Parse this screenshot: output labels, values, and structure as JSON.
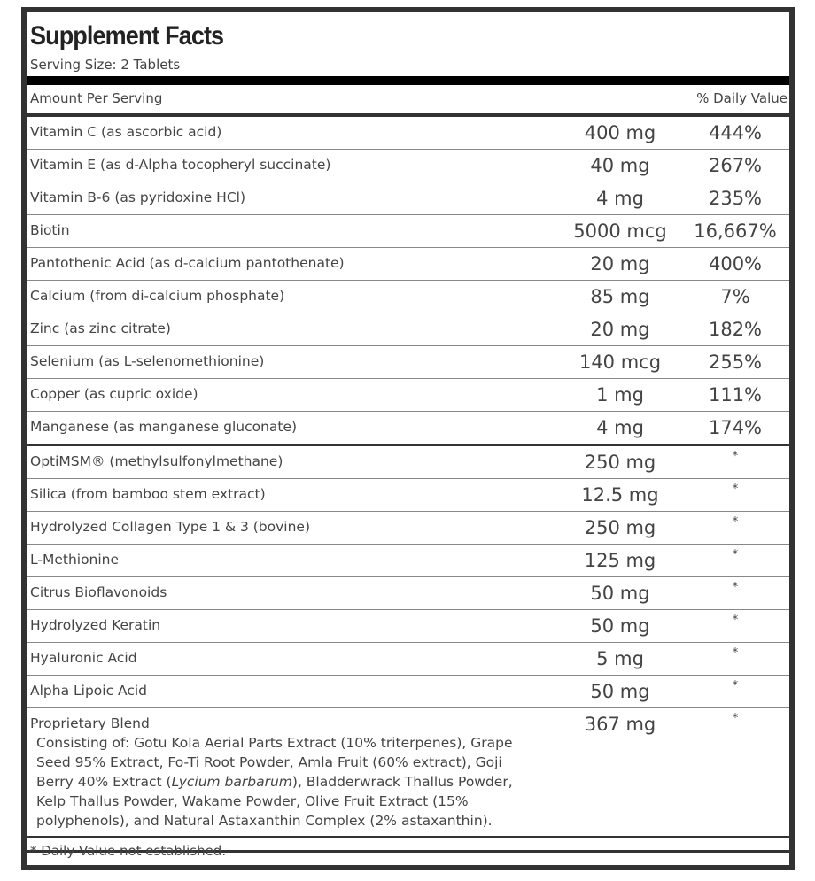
{
  "title": "Supplement Facts",
  "serving_size": "Serving Size: 2 Tablets",
  "header": {
    "amount": "Amount Per Serving",
    "dv": "% Daily Value"
  },
  "vitamins": [
    {
      "name": "Vitamin C (as ascorbic acid)",
      "amount": "400 mg",
      "dv": "444%"
    },
    {
      "name": "Vitamin E (as d-Alpha tocopheryl succinate)",
      "amount": "40 mg",
      "dv": "267%"
    },
    {
      "name": "Vitamin B-6 (as pyridoxine HCl)",
      "amount": "4 mg",
      "dv": "235%"
    },
    {
      "name": "Biotin",
      "amount": "5000 mcg",
      "dv": "16,667%"
    },
    {
      "name": "Pantothenic Acid (as d-calcium pantothenate)",
      "amount": "20 mg",
      "dv": "400%"
    },
    {
      "name": "Calcium (from di-calcium phosphate)",
      "amount": "85 mg",
      "dv": "7%"
    },
    {
      "name": "Zinc (as zinc citrate)",
      "amount": "20 mg",
      "dv": "182%"
    },
    {
      "name": "Selenium (as L-selenomethionine)",
      "amount": "140 mcg",
      "dv": "255%"
    },
    {
      "name": "Copper (as cupric oxide)",
      "amount": "1 mg",
      "dv": "111%"
    },
    {
      "name": "Manganese (as manganese gluconate)",
      "amount": "4 mg",
      "dv": "174%"
    }
  ],
  "others": [
    {
      "name": "OptiMSM® (methylsulfonylmethane)",
      "amount": "250 mg",
      "dv": "*"
    },
    {
      "name": "Silica (from bamboo stem extract)",
      "amount": "12.5 mg",
      "dv": "*"
    },
    {
      "name": "Hydrolyzed Collagen Type 1 & 3 (bovine)",
      "amount": "250 mg",
      "dv": "*"
    },
    {
      "name": "L-Methionine",
      "amount": "125 mg",
      "dv": "*"
    },
    {
      "name": "Citrus Bioflavonoids",
      "amount": "50 mg",
      "dv": "*"
    },
    {
      "name": "Hydrolyzed Keratin",
      "amount": "50 mg",
      "dv": "*"
    },
    {
      "name": "Hyaluronic Acid",
      "amount": "5 mg",
      "dv": "*"
    },
    {
      "name": "Alpha Lipoic Acid",
      "amount": "50 mg",
      "dv": "*"
    }
  ],
  "blend": {
    "name": "Proprietary Blend",
    "amount": "367 mg",
    "dv": "*",
    "desc_before": "Consisting of: Gotu Kola Aerial Parts Extract (10% triterpenes), Grape Seed 95% Extract, Fo-Ti Root Powder, Amla Fruit (60% extract), Goji Berry 40% Extract (",
    "desc_italic": "Lycium barbarum",
    "desc_after": "), Bladderwrack Thallus Powder, Kelp Thallus Powder, Wakame Powder, Olive Fruit Extract (15% polyphenols), and Natural Astaxanthin Complex (2% astaxanthin)."
  },
  "footnote": "* Daily Value not established."
}
